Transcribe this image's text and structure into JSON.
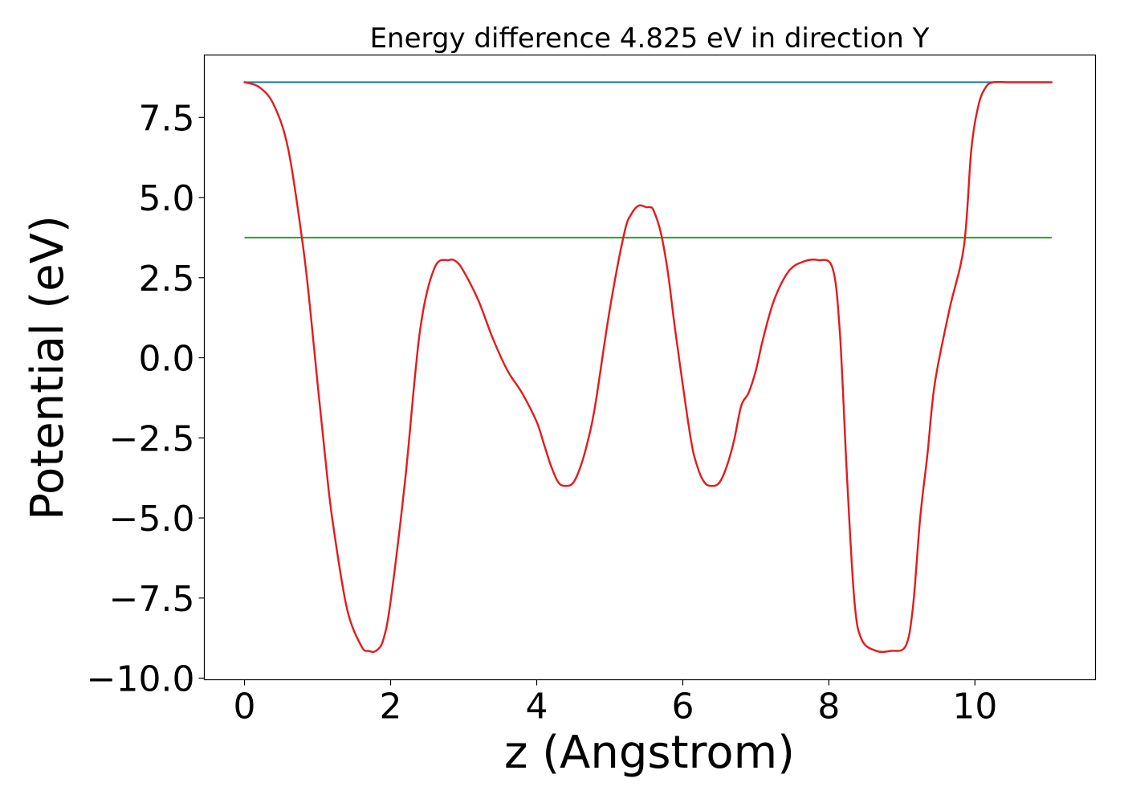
{
  "chart_data": {
    "type": "line",
    "title": "Energy difference 4.825 eV in direction Y",
    "xlabel": "z (Angstrom)",
    "ylabel": "Potential (eV)",
    "xlim": [
      -0.55,
      11.65
    ],
    "ylim": [
      -10.05,
      9.45
    ],
    "xticks": [
      0,
      2,
      4,
      6,
      8,
      10
    ],
    "xtick_labels": [
      "0",
      "2",
      "4",
      "6",
      "8",
      "10"
    ],
    "yticks": [
      -10.0,
      -7.5,
      -5.0,
      -2.5,
      0.0,
      2.5,
      5.0,
      7.5
    ],
    "ytick_labels": [
      "−10.0",
      "−7.5",
      "−5.0",
      "−2.5",
      "0.0",
      "2.5",
      "5.0",
      "7.5"
    ],
    "grid": false,
    "series": [
      {
        "color": "#1f77b4",
        "x": [
          0,
          11.05
        ],
        "y": [
          8.6,
          8.6
        ]
      },
      {
        "color": "#2ca02c",
        "x": [
          0,
          11.05
        ],
        "y": [
          3.75,
          3.75
        ]
      },
      {
        "color": "#e41a1c",
        "x": [
          0,
          0.2,
          0.4,
          0.6,
          0.8,
          0.9,
          1.0,
          1.1,
          1.2,
          1.4,
          1.6,
          1.7,
          1.8,
          1.9,
          2.0,
          2.2,
          2.4,
          2.6,
          2.8,
          2.9,
          3.0,
          3.2,
          3.4,
          3.6,
          3.8,
          4.0,
          4.1,
          4.2,
          4.3,
          4.4,
          4.5,
          4.6,
          4.7,
          4.8,
          5.0,
          5.2,
          5.3,
          5.4,
          5.5,
          5.55,
          5.6,
          5.7,
          5.8,
          5.9,
          6.1,
          6.2,
          6.3,
          6.4,
          6.5,
          6.6,
          6.7,
          6.8,
          6.9,
          7.0,
          7.1,
          7.25,
          7.45,
          7.65,
          7.85,
          8.05,
          8.15,
          8.25,
          8.35,
          8.45,
          8.65,
          8.85,
          9.05,
          9.15,
          9.25,
          9.35,
          9.45,
          9.65,
          9.85,
          9.95,
          10.05,
          10.15,
          10.25,
          10.45,
          10.65,
          10.85,
          11.05
        ],
        "y": [
          8.6,
          8.45,
          7.9,
          6.5,
          3.5,
          1.5,
          -0.8,
          -3.0,
          -5.0,
          -7.8,
          -9.0,
          -9.15,
          -9.15,
          -8.8,
          -7.6,
          -3.8,
          0.8,
          2.8,
          3.05,
          3.0,
          2.7,
          1.8,
          0.6,
          -0.4,
          -1.1,
          -2.0,
          -2.7,
          -3.4,
          -3.9,
          -4.0,
          -3.9,
          -3.4,
          -2.6,
          -1.5,
          1.5,
          3.9,
          4.5,
          4.75,
          4.7,
          4.7,
          4.6,
          3.9,
          2.6,
          0.8,
          -2.4,
          -3.4,
          -3.9,
          -4.0,
          -3.9,
          -3.4,
          -2.6,
          -1.5,
          -1.1,
          -0.4,
          0.6,
          1.8,
          2.7,
          3.0,
          3.05,
          2.8,
          0.8,
          -3.8,
          -7.6,
          -8.8,
          -9.15,
          -9.15,
          -9.0,
          -7.8,
          -5.0,
          -3.0,
          -0.8,
          1.5,
          3.5,
          6.5,
          7.9,
          8.45,
          8.6,
          8.6,
          8.6,
          8.6,
          8.6
        ]
      }
    ]
  }
}
